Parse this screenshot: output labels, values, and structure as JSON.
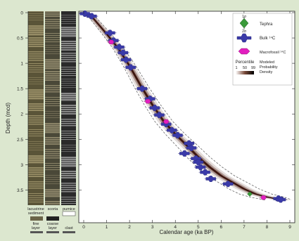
{
  "colors": {
    "page_bg": "#dce7cf",
    "panel_bg": "#ffffff",
    "bulk_fill": "#3a3aa8",
    "bulk_stroke": "#2a2a7a",
    "tephra_fill": "#3a9a3a",
    "macrofossil_fill": "#e21fbf",
    "model_band": "#4a1a10",
    "dashed_envelope": "#555555"
  },
  "legend": {
    "tephra_label": "Tephra",
    "sigma1": "1σ",
    "sigma2": "2σ",
    "bulk_label": "Bulk ¹⁴C",
    "macrofossil_label": "Macrofossil ¹⁴C",
    "percentile_label": "Percentile",
    "percentile_ticks": [
      "1",
      "50",
      "99"
    ],
    "model_label_lines": [
      "Modeled",
      "Probability",
      "Density"
    ]
  },
  "core_legend": {
    "lacustrine_lines": [
      "lacustrine",
      "sediment"
    ],
    "scoria": "scoria",
    "pumice": "pumice",
    "fine_lines": [
      "fine",
      "layer"
    ],
    "coarse_lines": [
      "coarse",
      "layer"
    ],
    "clast": "clast"
  },
  "chart_data": {
    "type": "scatter",
    "title": "",
    "xlabel": "Calendar age (ka BP)",
    "ylabel": "Depth (mcd)",
    "xlim": [
      0,
      9
    ],
    "ylim": [
      0,
      3.8
    ],
    "y_inverted": true,
    "grid": false,
    "legend_position": "top-right",
    "x_ticks": [
      "0",
      "1",
      "2",
      "3",
      "4",
      "5",
      "6",
      "7",
      "8",
      "9"
    ],
    "y_ticks": [
      "0",
      "0.5",
      "1",
      "1.5",
      "2",
      "2.5",
      "3",
      "3.5"
    ],
    "series": [
      {
        "name": "Bulk ¹⁴C",
        "points": [
          {
            "x": 0.05,
            "y": 0.02
          },
          {
            "x": 0.35,
            "y": 0.07
          },
          {
            "x": 1.15,
            "y": 0.4
          },
          {
            "x": 1.3,
            "y": 0.55
          },
          {
            "x": 1.55,
            "y": 0.68
          },
          {
            "x": 1.72,
            "y": 0.79
          },
          {
            "x": 1.85,
            "y": 0.93
          },
          {
            "x": 2.05,
            "y": 1.08
          },
          {
            "x": 2.55,
            "y": 1.5
          },
          {
            "x": 2.9,
            "y": 1.7
          },
          {
            "x": 3.1,
            "y": 1.88
          },
          {
            "x": 3.3,
            "y": 2.02
          },
          {
            "x": 3.6,
            "y": 2.2
          },
          {
            "x": 3.85,
            "y": 2.32
          },
          {
            "x": 4.1,
            "y": 2.42
          },
          {
            "x": 4.6,
            "y": 2.58
          },
          {
            "x": 4.7,
            "y": 2.67
          },
          {
            "x": 4.4,
            "y": 2.78
          },
          {
            "x": 4.9,
            "y": 2.88
          },
          {
            "x": 5.0,
            "y": 2.95
          },
          {
            "x": 5.1,
            "y": 3.05
          },
          {
            "x": 5.3,
            "y": 3.15
          },
          {
            "x": 5.55,
            "y": 3.28
          },
          {
            "x": 6.3,
            "y": 3.38
          },
          {
            "x": 8.5,
            "y": 3.67
          },
          {
            "x": 8.6,
            "y": 3.69
          }
        ]
      },
      {
        "name": "Macrofossil ¹⁴C",
        "points": [
          {
            "x": 1.2,
            "y": 0.58
          },
          {
            "x": 2.8,
            "y": 1.75
          },
          {
            "x": 3.6,
            "y": 2.15
          },
          {
            "x": 7.85,
            "y": 3.65
          }
        ]
      },
      {
        "name": "Tephra",
        "points": [
          {
            "x": 7.25,
            "y": 3.58
          }
        ]
      }
    ],
    "model_median": {
      "x": [
        0.0,
        0.3,
        1.0,
        1.5,
        2.0,
        2.5,
        3.0,
        3.5,
        4.0,
        4.5,
        5.0,
        5.5,
        6.0,
        6.5,
        7.0,
        7.5,
        8.0,
        8.5,
        8.7
      ],
      "y": [
        0.0,
        0.05,
        0.42,
        0.7,
        1.05,
        1.45,
        1.82,
        2.15,
        2.4,
        2.62,
        2.85,
        3.05,
        3.22,
        3.35,
        3.48,
        3.58,
        3.64,
        3.68,
        3.7
      ]
    }
  }
}
